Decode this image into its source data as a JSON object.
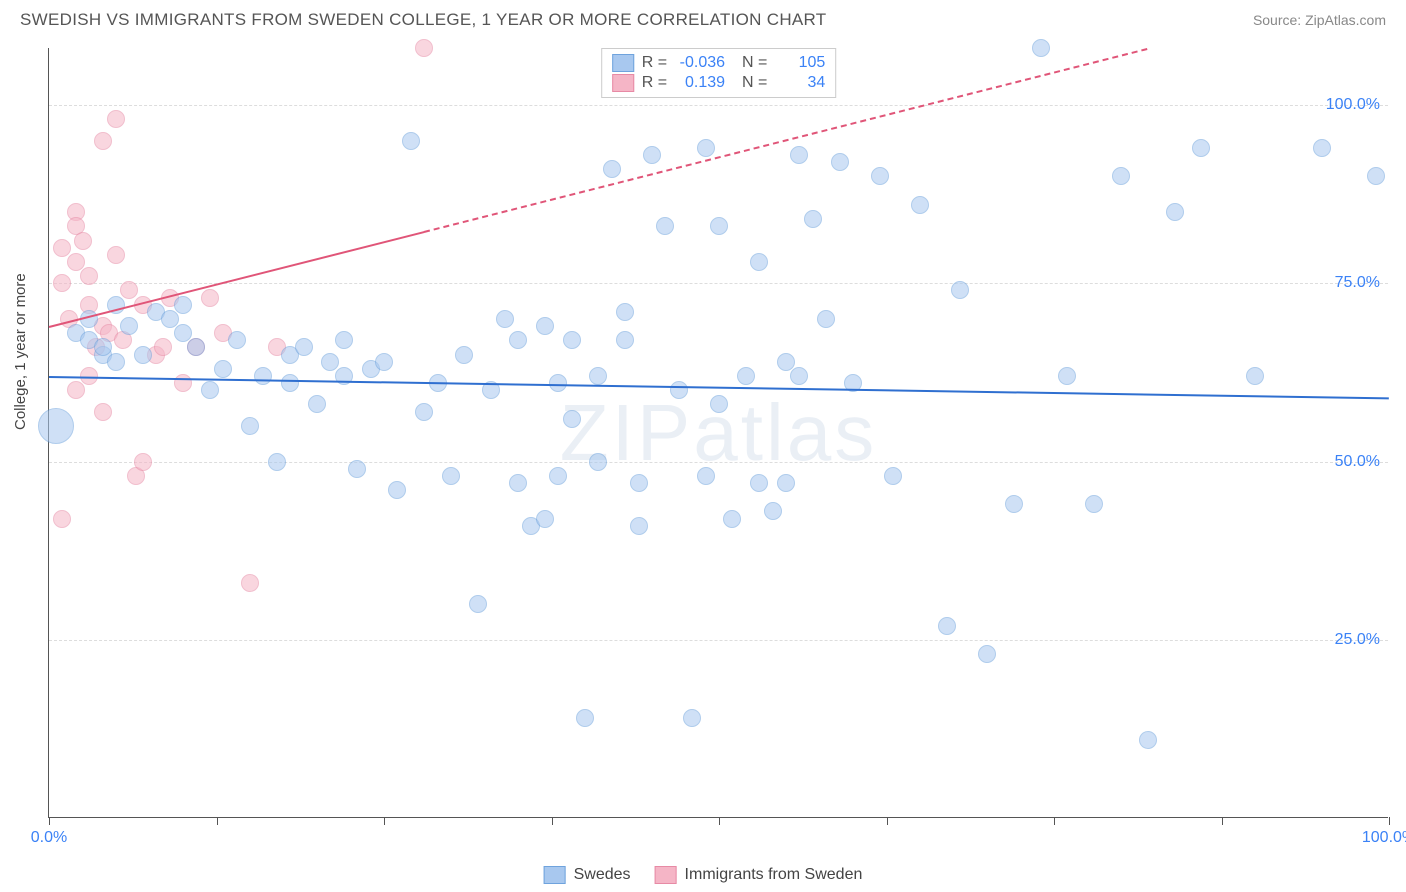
{
  "title": "SWEDISH VS IMMIGRANTS FROM SWEDEN COLLEGE, 1 YEAR OR MORE CORRELATION CHART",
  "source": "Source: ZipAtlas.com",
  "watermark": "ZIPatlas",
  "ylabel": "College, 1 year or more",
  "chart": {
    "type": "scatter",
    "background_color": "#ffffff",
    "grid_color": "#dddddd",
    "axis_color": "#555555",
    "xlim": [
      0,
      100
    ],
    "ylim": [
      0,
      108
    ],
    "ytick_positions": [
      25,
      50,
      75,
      100
    ],
    "ytick_labels": [
      "25.0%",
      "50.0%",
      "75.0%",
      "100.0%"
    ],
    "xtick_positions": [
      0,
      12.5,
      25,
      37.5,
      50,
      62.5,
      75,
      87.5,
      100
    ],
    "xtick_labels_shown": {
      "0": "0.0%",
      "100": "100.0%"
    },
    "tick_label_color": "#3b82f6",
    "tick_label_fontsize": 16,
    "ylabel_fontsize": 15,
    "title_fontsize": 17,
    "title_color": "#555555",
    "series": {
      "swedes": {
        "label": "Swedes",
        "fill_color": "#a8c8ef",
        "fill_opacity": 0.55,
        "stroke_color": "#6fa3dd",
        "marker_radius": 9,
        "trend_color": "#2f6fd0",
        "trend_width": 2.5,
        "trend_dash": "none",
        "trend": {
          "x1": 0,
          "y1": 62,
          "x2": 100,
          "y2": 59
        },
        "R": "-0.036",
        "N": "105",
        "points": [
          [
            0.5,
            55,
            18
          ],
          [
            2,
            68,
            9
          ],
          [
            3,
            67,
            9
          ],
          [
            4,
            65,
            9
          ],
          [
            3,
            70,
            9
          ],
          [
            4,
            66,
            9
          ],
          [
            5,
            64,
            9
          ],
          [
            5,
            72,
            9
          ],
          [
            6,
            69,
            9
          ],
          [
            7,
            65,
            9
          ],
          [
            8,
            71,
            9
          ],
          [
            9,
            70,
            9
          ],
          [
            10,
            68,
            9
          ],
          [
            10,
            72,
            9
          ],
          [
            11,
            66,
            9
          ],
          [
            12,
            60,
            9
          ],
          [
            13,
            63,
            9
          ],
          [
            14,
            67,
            9
          ],
          [
            15,
            55,
            9
          ],
          [
            16,
            62,
            9
          ],
          [
            17,
            50,
            9
          ],
          [
            18,
            61,
            9
          ],
          [
            18,
            65,
            9
          ],
          [
            19,
            66,
            9
          ],
          [
            20,
            58,
            9
          ],
          [
            21,
            64,
            9
          ],
          [
            22,
            67,
            9
          ],
          [
            22,
            62,
            9
          ],
          [
            23,
            49,
            9
          ],
          [
            24,
            63,
            9
          ],
          [
            25,
            64,
            9
          ],
          [
            26,
            46,
            9
          ],
          [
            27,
            95,
            9
          ],
          [
            28,
            57,
            9
          ],
          [
            29,
            61,
            9
          ],
          [
            30,
            48,
            9
          ],
          [
            31,
            65,
            9
          ],
          [
            32,
            30,
            9
          ],
          [
            33,
            60,
            9
          ],
          [
            34,
            70,
            9
          ],
          [
            35,
            47,
            9
          ],
          [
            35,
            67,
            9
          ],
          [
            36,
            41,
            9
          ],
          [
            37,
            42,
            9
          ],
          [
            37,
            69,
            9
          ],
          [
            38,
            61,
            9
          ],
          [
            38,
            48,
            9
          ],
          [
            39,
            67,
            9
          ],
          [
            39,
            56,
            9
          ],
          [
            40,
            14,
            9
          ],
          [
            41,
            62,
            9
          ],
          [
            41,
            50,
            9
          ],
          [
            42,
            91,
            9
          ],
          [
            43,
            67,
            9
          ],
          [
            43,
            71,
            9
          ],
          [
            44,
            41,
            9
          ],
          [
            44,
            47,
            9
          ],
          [
            45,
            93,
            9
          ],
          [
            46,
            83,
            9
          ],
          [
            47,
            60,
            9
          ],
          [
            48,
            14,
            9
          ],
          [
            49,
            94,
            9
          ],
          [
            49,
            48,
            9
          ],
          [
            50,
            83,
            9
          ],
          [
            50,
            58,
            9
          ],
          [
            51,
            42,
            9
          ],
          [
            52,
            62,
            9
          ],
          [
            53,
            78,
            9
          ],
          [
            53,
            47,
            9
          ],
          [
            54,
            43,
            9
          ],
          [
            55,
            64,
            9
          ],
          [
            55,
            47,
            9
          ],
          [
            56,
            93,
            9
          ],
          [
            56,
            62,
            9
          ],
          [
            57,
            84,
            9
          ],
          [
            58,
            70,
            9
          ],
          [
            59,
            92,
            9
          ],
          [
            60,
            61,
            9
          ],
          [
            62,
            90,
            9
          ],
          [
            63,
            48,
            9
          ],
          [
            65,
            86,
            9
          ],
          [
            67,
            27,
            9
          ],
          [
            68,
            74,
            9
          ],
          [
            70,
            23,
            9
          ],
          [
            72,
            44,
            9
          ],
          [
            74,
            108,
            9
          ],
          [
            76,
            62,
            9
          ],
          [
            78,
            44,
            9
          ],
          [
            80,
            90,
            9
          ],
          [
            82,
            11,
            9
          ],
          [
            84,
            85,
            9
          ],
          [
            86,
            94,
            9
          ],
          [
            90,
            62,
            9
          ],
          [
            95,
            94,
            9
          ],
          [
            99,
            90,
            9
          ]
        ]
      },
      "immigrants": {
        "label": "Immigrants from Sweden",
        "fill_color": "#f5b5c6",
        "fill_opacity": 0.55,
        "stroke_color": "#e78aa5",
        "marker_radius": 9,
        "trend_color": "#e05578",
        "trend_width": 2,
        "trend_dash": "solid_then_dashed",
        "trend_solid_range": [
          0,
          28
        ],
        "trend": {
          "x1": 0,
          "y1": 69,
          "x2": 82,
          "y2": 108
        },
        "R": "0.139",
        "N": "34",
        "points": [
          [
            1,
            80,
            9
          ],
          [
            1,
            75,
            9
          ],
          [
            1.5,
            70,
            9
          ],
          [
            2,
            85,
            9
          ],
          [
            2,
            78,
            9
          ],
          [
            2,
            83,
            9
          ],
          [
            2.5,
            81,
            9
          ],
          [
            3,
            76,
            9
          ],
          [
            3,
            72,
            9
          ],
          [
            3.5,
            66,
            9
          ],
          [
            4,
            69,
            9
          ],
          [
            4,
            95,
            9
          ],
          [
            4.5,
            68,
            9
          ],
          [
            5,
            98,
            9
          ],
          [
            5,
            79,
            9
          ],
          [
            5.5,
            67,
            9
          ],
          [
            6,
            74,
            9
          ],
          [
            6.5,
            48,
            9
          ],
          [
            7,
            72,
            9
          ],
          [
            7,
            50,
            9
          ],
          [
            8,
            65,
            9
          ],
          [
            8.5,
            66,
            9
          ],
          [
            9,
            73,
            9
          ],
          [
            10,
            61,
            9
          ],
          [
            11,
            66,
            9
          ],
          [
            12,
            73,
            9
          ],
          [
            13,
            68,
            9
          ],
          [
            15,
            33,
            9
          ],
          [
            17,
            66,
            9
          ],
          [
            1,
            42,
            9
          ],
          [
            2,
            60,
            9
          ],
          [
            3,
            62,
            9
          ],
          [
            4,
            57,
            9
          ],
          [
            28,
            108,
            9
          ]
        ]
      }
    }
  },
  "legend": {
    "swedes_swatch_fill": "#a8c8ef",
    "swedes_swatch_stroke": "#6fa3dd",
    "immigrants_swatch_fill": "#f5b5c6",
    "immigrants_swatch_stroke": "#e78aa5"
  }
}
